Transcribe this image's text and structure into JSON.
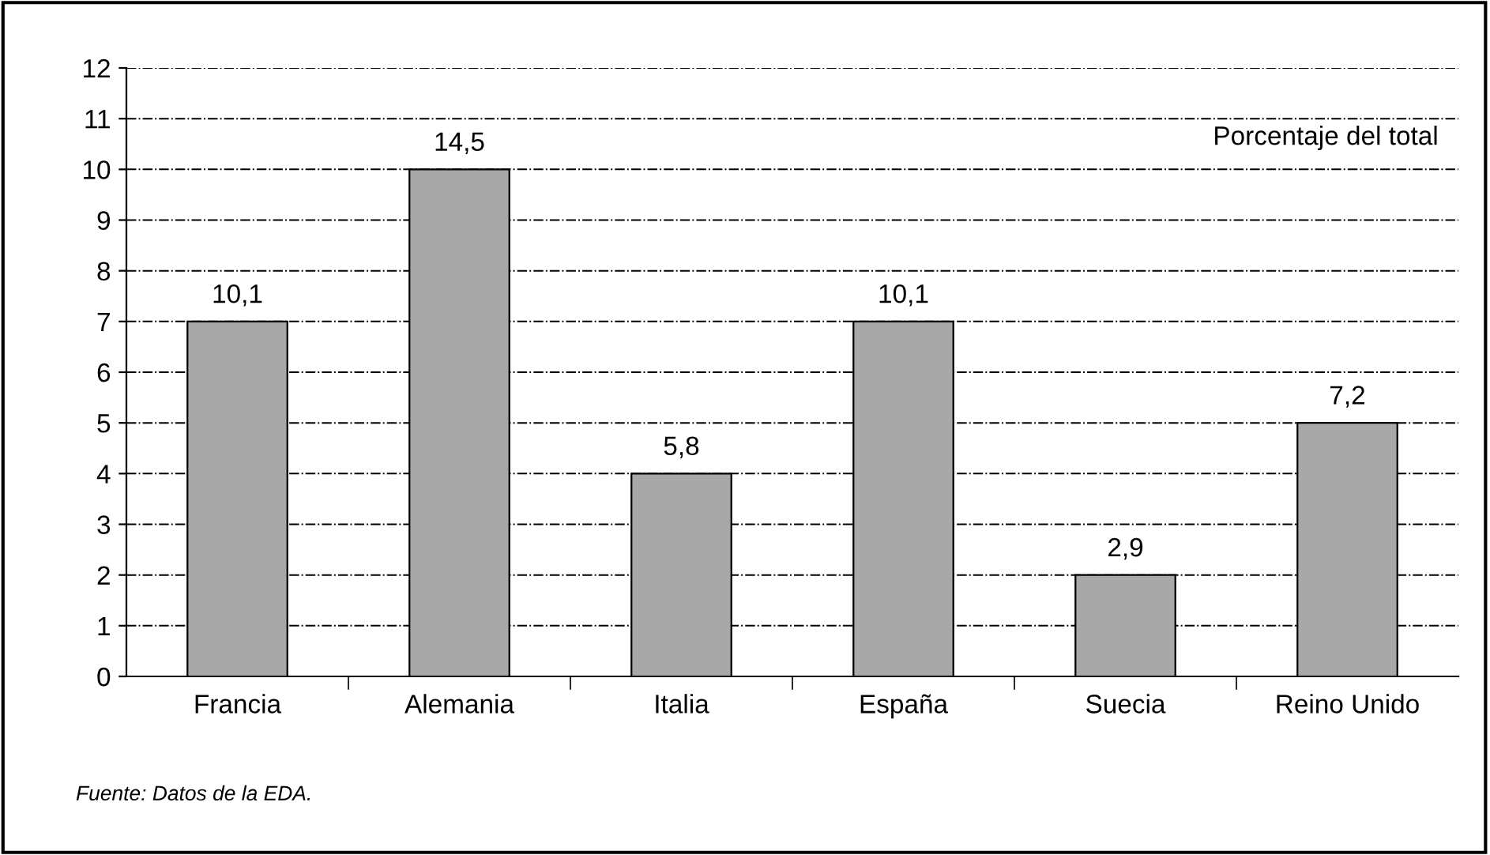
{
  "chart_data": {
    "type": "bar",
    "categories": [
      "Francia",
      "Alemania",
      "Italia",
      "España",
      "Suecia",
      "Reino Unido"
    ],
    "values": [
      7,
      10,
      4,
      7,
      2,
      5
    ],
    "color": "#a8a8a8",
    "ylim": [
      0,
      12
    ],
    "yticks": [
      0,
      1,
      2,
      3,
      4,
      5,
      6,
      7,
      8,
      9,
      10,
      11,
      12
    ],
    "grid": "y",
    "legend": false,
    "annotations": [
      "Porcentaje del total",
      "Fuente: Datos de la EDA.",
      {
        "text": "10,1",
        "x": "Francia",
        "y": 7
      },
      {
        "text": "14,5",
        "x": "Alemania",
        "y": 10
      },
      {
        "text": "5,8",
        "x": "Italia",
        "y": 4
      },
      {
        "text": "10,1",
        "x": "España",
        "y": 7
      },
      {
        "text": "2,9",
        "x": "Suecia",
        "y": 2
      },
      {
        "text": "7,2",
        "x": "Reino Unido",
        "y": 5
      }
    ]
  }
}
